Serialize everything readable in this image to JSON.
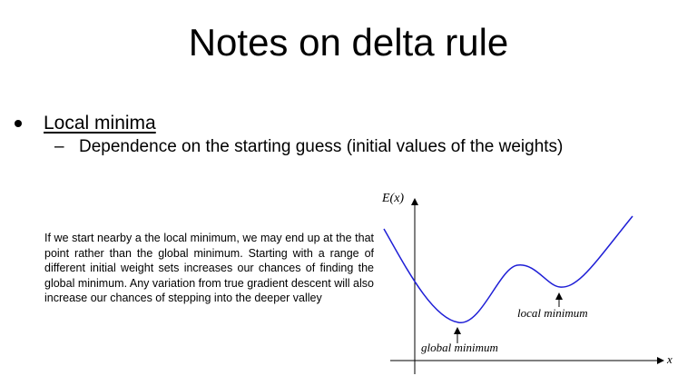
{
  "slide": {
    "title": "Notes on delta rule"
  },
  "bullet": {
    "label": "Local minima",
    "sub": {
      "dash": "–",
      "label": "Dependence on the starting guess (initial values of the weights)"
    }
  },
  "note": {
    "text": "If we start nearby a the local minimum, we may end up at the that point rather than the global minimum. Starting with a range of different initial weight sets increases our chances of finding the global minimum. Any variation from true gradient descent will also increase our chances of stepping into the deeper valley"
  },
  "figure": {
    "y_axis_label": "E(x)",
    "x_axis_label": "x",
    "global_label": "global minimum",
    "local_label": "local minimum",
    "curve_color": "#1f1fd6"
  }
}
